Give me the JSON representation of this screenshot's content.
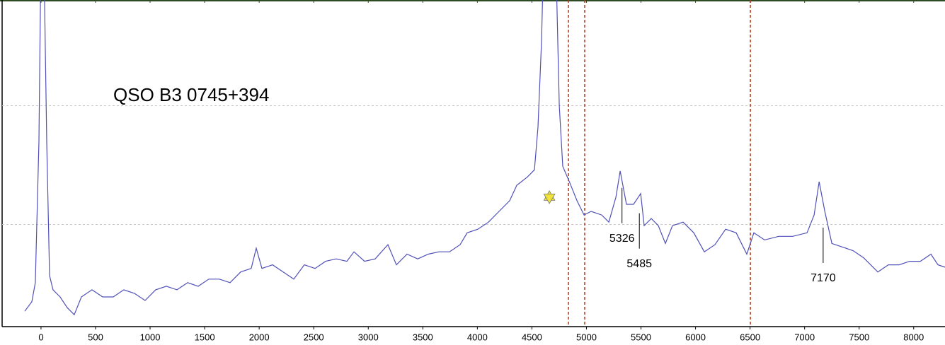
{
  "chart_data": {
    "type": "line",
    "title": "QSO B3 0745+394",
    "xlim": [
      -376,
      8287
    ],
    "ylim": [
      0.14,
      2.89
    ],
    "xticks": [
      0,
      500,
      1000,
      1500,
      2000,
      2500,
      3000,
      3500,
      4000,
      4500,
      5000,
      5500,
      6000,
      6500,
      7000,
      7500,
      8000
    ],
    "ygrid": [
      1,
      2
    ],
    "color": "#5050b8",
    "x": [
      -149,
      -84,
      -52,
      -19,
      0,
      26,
      52,
      78,
      110,
      175,
      240,
      305,
      370,
      467,
      565,
      662,
      759,
      857,
      954,
      1051,
      1149,
      1246,
      1344,
      1441,
      1538,
      1635,
      1733,
      1830,
      1927,
      1973,
      2025,
      2122,
      2220,
      2317,
      2414,
      2512,
      2609,
      2706,
      2804,
      2869,
      2966,
      3063,
      3180,
      3258,
      3355,
      3453,
      3550,
      3647,
      3745,
      3842,
      3907,
      4004,
      4102,
      4199,
      4296,
      4361,
      4459,
      4523,
      4556,
      4588,
      4608,
      4718,
      4751,
      4783,
      4848,
      4913,
      4978,
      5043,
      5140,
      5205,
      5270,
      5309,
      5367,
      5432,
      5497,
      5529,
      5594,
      5659,
      5724,
      5789,
      5886,
      5984,
      6081,
      6178,
      6276,
      6373,
      6470,
      6535,
      6633,
      6763,
      6892,
      7022,
      7087,
      7133,
      7185,
      7250,
      7347,
      7444,
      7541,
      7671,
      7768,
      7866,
      7963,
      8061,
      8158,
      8223,
      8288
    ],
    "values": [
      0.27,
      0.35,
      0.51,
      1.7,
      3.3,
      3.3,
      1.7,
      0.57,
      0.45,
      0.39,
      0.3,
      0.24,
      0.39,
      0.45,
      0.39,
      0.39,
      0.45,
      0.42,
      0.36,
      0.45,
      0.48,
      0.45,
      0.51,
      0.48,
      0.54,
      0.54,
      0.51,
      0.6,
      0.63,
      0.8,
      0.63,
      0.66,
      0.6,
      0.54,
      0.66,
      0.63,
      0.69,
      0.71,
      0.69,
      0.77,
      0.69,
      0.71,
      0.83,
      0.66,
      0.75,
      0.71,
      0.75,
      0.77,
      0.77,
      0.83,
      0.93,
      0.96,
      1.02,
      1.11,
      1.2,
      1.33,
      1.4,
      1.46,
      1.82,
      2.54,
      3.3,
      3.3,
      2.0,
      1.49,
      1.35,
      1.2,
      1.08,
      1.11,
      1.08,
      1.02,
      1.23,
      1.45,
      1.17,
      1.17,
      1.26,
      0.99,
      1.05,
      0.99,
      0.84,
      0.99,
      1.02,
      0.93,
      0.77,
      0.83,
      0.96,
      0.93,
      0.75,
      0.93,
      0.87,
      0.9,
      0.9,
      0.93,
      1.08,
      1.36,
      1.11,
      0.84,
      0.81,
      0.78,
      0.72,
      0.6,
      0.66,
      0.66,
      0.69,
      0.69,
      0.75,
      0.66,
      0.64
    ],
    "vlines": [
      4835,
      4984,
      6503
    ],
    "vline_color": "#b03a1a",
    "marker": {
      "x": 4660,
      "y": 1.23,
      "color": "#f2e33a"
    },
    "annotations": [
      5326,
      5485,
      7170
    ]
  }
}
